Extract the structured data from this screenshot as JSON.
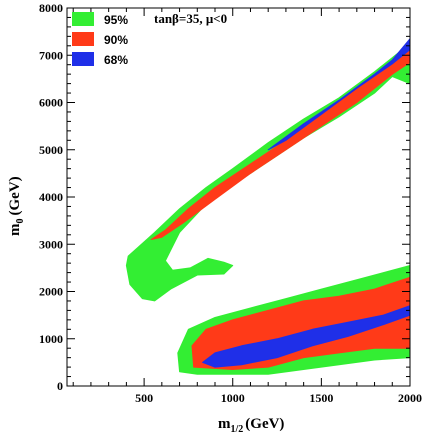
{
  "chart_data": {
    "type": "area",
    "title": "",
    "annotation": "tanβ=35, μ<0",
    "xlabel": "m1/2",
    "xlabel_main": "m",
    "xlabel_sub": "1/2",
    "xlabel_unit": "(GeV)",
    "ylabel": "m0 (GeV)",
    "ylabel_main": "m",
    "ylabel_sub": "0",
    "ylabel_unit": "(GeV)",
    "xlim": [
      65,
      2000
    ],
    "ylim": [
      0,
      8000
    ],
    "xticks": [
      500,
      1000,
      1500,
      2000
    ],
    "yticks": [
      0,
      1000,
      2000,
      3000,
      4000,
      5000,
      6000,
      7000,
      8000
    ],
    "grid": false,
    "legend_position": "top-left",
    "colors": {
      "95%": "#33ee33",
      "90%": "#ff3a18",
      "68%": "#1f2fe8"
    },
    "series": [
      {
        "name": "95%",
        "regions": [
          [
            [
              410,
              2750
            ],
            [
              470,
              2950
            ],
            [
              560,
              3250
            ],
            [
              700,
              3750
            ],
            [
              850,
              4200
            ],
            [
              1000,
              4600
            ],
            [
              1200,
              5150
            ],
            [
              1400,
              5650
            ],
            [
              1600,
              6100
            ],
            [
              1800,
              6650
            ],
            [
              1900,
              6950
            ],
            [
              2000,
              7250
            ],
            [
              2000,
              6400
            ],
            [
              1900,
              6550
            ],
            [
              1800,
              6200
            ],
            [
              1600,
              5700
            ],
            [
              1400,
              5250
            ],
            [
              1200,
              4750
            ],
            [
              1000,
              4250
            ],
            [
              850,
              3850
            ],
            [
              700,
              3250
            ],
            [
              620,
              2650
            ],
            [
              660,
              2450
            ],
            [
              760,
              2500
            ],
            [
              860,
              2700
            ],
            [
              950,
              2620
            ],
            [
              1000,
              2550
            ],
            [
              950,
              2370
            ],
            [
              800,
              2350
            ],
            [
              650,
              2050
            ],
            [
              560,
              1800
            ],
            [
              490,
              1850
            ],
            [
              420,
              2150
            ],
            [
              400,
              2550
            ]
          ],
          [
            [
              700,
              300
            ],
            [
              690,
              700
            ],
            [
              750,
              1200
            ],
            [
              900,
              1450
            ],
            [
              1100,
              1650
            ],
            [
              1300,
              1850
            ],
            [
              1500,
              2050
            ],
            [
              1700,
              2250
            ],
            [
              1900,
              2450
            ],
            [
              2000,
              2550
            ],
            [
              2000,
              600
            ],
            [
              1800,
              550
            ],
            [
              1600,
              450
            ],
            [
              1400,
              350
            ],
            [
              1200,
              250
            ],
            [
              1000,
              250
            ],
            [
              800,
              250
            ]
          ]
        ]
      },
      {
        "name": "90%",
        "regions": [
          [
            [
              540,
              3100
            ],
            [
              620,
              3300
            ],
            [
              750,
              3750
            ],
            [
              900,
              4200
            ],
            [
              1100,
              4700
            ],
            [
              1300,
              5200
            ],
            [
              1500,
              5750
            ],
            [
              1700,
              6300
            ],
            [
              1900,
              6800
            ],
            [
              2000,
              7100
            ],
            [
              2000,
              6850
            ],
            [
              1900,
              6600
            ],
            [
              1700,
              6000
            ],
            [
              1500,
              5500
            ],
            [
              1300,
              5000
            ],
            [
              1100,
              4500
            ],
            [
              900,
              3950
            ],
            [
              720,
              3450
            ],
            [
              600,
              3150
            ]
          ],
          [
            [
              780,
              400
            ],
            [
              770,
              850
            ],
            [
              850,
              1200
            ],
            [
              1000,
              1400
            ],
            [
              1200,
              1600
            ],
            [
              1400,
              1800
            ],
            [
              1600,
              1900
            ],
            [
              1800,
              2050
            ],
            [
              2000,
              2300
            ],
            [
              2000,
              800
            ],
            [
              1800,
              800
            ],
            [
              1600,
              700
            ],
            [
              1400,
              600
            ],
            [
              1200,
              400
            ],
            [
              1000,
              350
            ]
          ]
        ]
      },
      {
        "name": "68%",
        "regions": [
          [
            [
              1200,
              5000
            ],
            [
              1400,
              5550
            ],
            [
              1600,
              6050
            ],
            [
              1800,
              6600
            ],
            [
              1900,
              6900
            ],
            [
              2000,
              7350
            ],
            [
              2000,
              7120
            ],
            [
              1900,
              6820
            ],
            [
              1700,
              6300
            ],
            [
              1500,
              5750
            ],
            [
              1300,
              5200
            ]
          ],
          [
            [
              830,
              500
            ],
            [
              900,
              700
            ],
            [
              1050,
              850
            ],
            [
              1250,
              1000
            ],
            [
              1450,
              1200
            ],
            [
              1650,
              1350
            ],
            [
              1850,
              1500
            ],
            [
              2000,
              1700
            ],
            [
              2000,
              1500
            ],
            [
              1850,
              1300
            ],
            [
              1650,
              1050
            ],
            [
              1450,
              850
            ],
            [
              1250,
              600
            ],
            [
              1050,
              450
            ],
            [
              900,
              400
            ]
          ]
        ]
      }
    ]
  }
}
